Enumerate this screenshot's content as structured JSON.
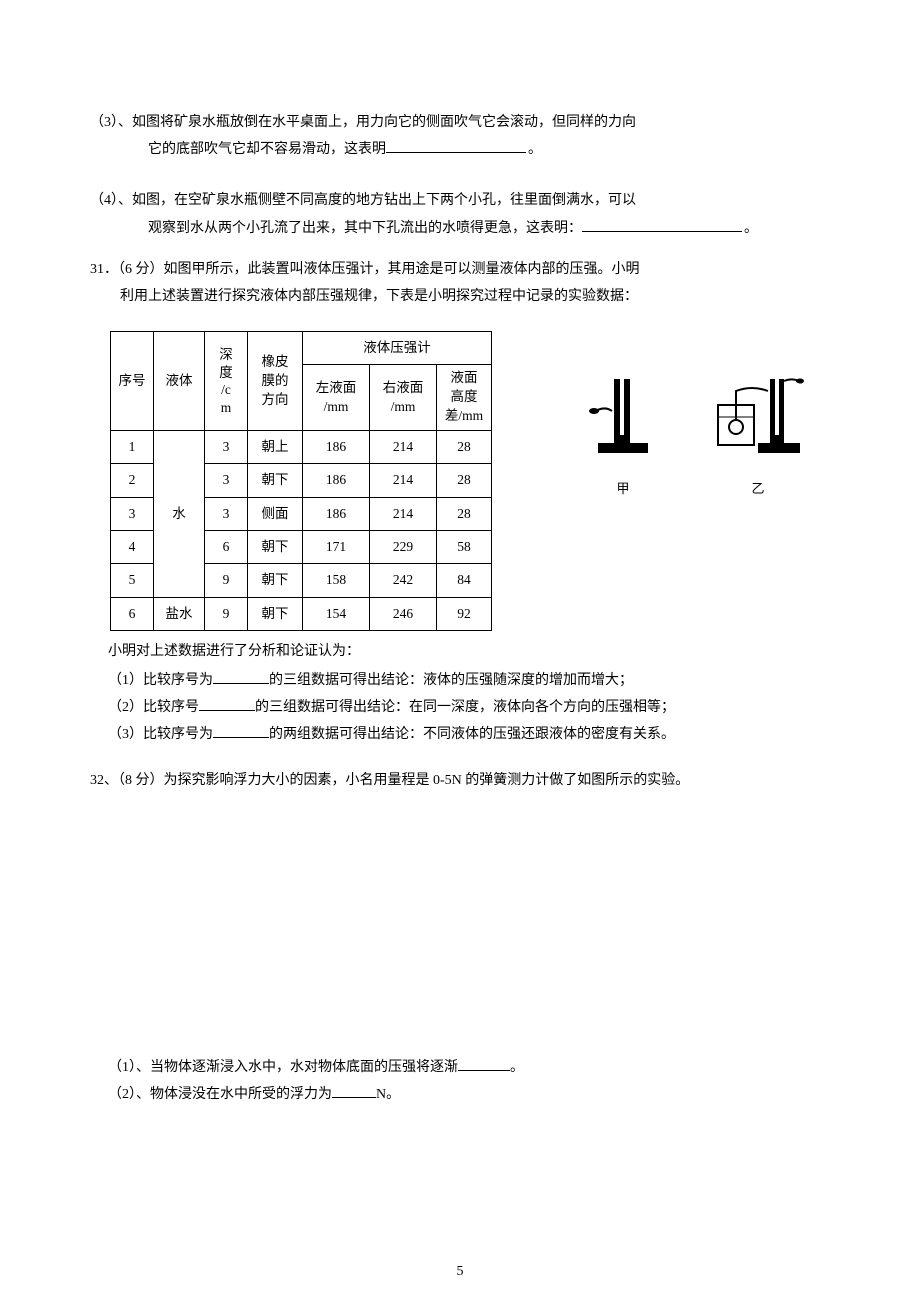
{
  "q3": {
    "label": "（3）、",
    "line1": "如图将矿泉水瓶放倒在水平桌面上，用力向它的侧面吹气它会滚动，但同样的力向",
    "line2": "它的底部吹气它却不容易滑动，这表明",
    "blank_w": 140,
    "tail": "。"
  },
  "q4": {
    "label": "（4）、",
    "line1": "如图，在空矿泉水瓶侧壁不同高度的地方钻出上下两个小孔，往里面倒满水，可以",
    "line2": "观察到水从两个小孔流了出来，其中下孔流出的水喷得更急，这表明：",
    "blank_w": 160,
    "tail": "。"
  },
  "q31": {
    "label": "31．",
    "points": "（6 分）",
    "line1": "如图甲所示，此装置叫液体压强计，其用途是可以测量液体内部的压强。小明",
    "line2": "利用上述装置进行探究液体内部压强规律，下表是小明探究过程中记录的实验数据："
  },
  "table": {
    "head": {
      "seq": "序号",
      "liquid": "液体",
      "depth_l1": "深",
      "depth_l2": "度",
      "depth_l3": "/c",
      "depth_l4": "m",
      "dir_l1": "橡皮",
      "dir_l2": "膜的",
      "dir_l3": "方向",
      "group": "液体压强计",
      "left": "左液面",
      "left_u": "/mm",
      "right": "右液面",
      "right_u": "/mm",
      "diff_l1": "液面",
      "diff_l2": "高度",
      "diff_l3": "差/mm"
    },
    "water_label": "水",
    "salt_label": "盐水",
    "rows": [
      {
        "n": "1",
        "d": "3",
        "dir": "朝上",
        "l": "186",
        "r": "214",
        "h": "28"
      },
      {
        "n": "2",
        "d": "3",
        "dir": "朝下",
        "l": "186",
        "r": "214",
        "h": "28"
      },
      {
        "n": "3",
        "d": "3",
        "dir": "侧面",
        "l": "186",
        "r": "214",
        "h": "28"
      },
      {
        "n": "4",
        "d": "6",
        "dir": "朝下",
        "l": "171",
        "r": "229",
        "h": "58"
      },
      {
        "n": "5",
        "d": "9",
        "dir": "朝下",
        "l": "158",
        "r": "242",
        "h": "84"
      },
      {
        "n": "6",
        "d": "9",
        "dir": "朝下",
        "l": "154",
        "r": "246",
        "h": "92"
      }
    ]
  },
  "figs": {
    "cap1": "甲",
    "cap2": "乙"
  },
  "q31_below": {
    "intro": "小明对上述数据进行了分析和论证认为：",
    "s1a": "（1）比较序号为",
    "s1b": "的三组数据可得出结论：液体的压强随深度的增加而增大；",
    "s2a": "（2）比较序号",
    "s2b": "的三组数据可得出结论：在同一深度，液体向各个方向的压强相等；",
    "s3a": "（3）比较序号为",
    "s3b": "的两组数据可得出结论：不同液体的压强还跟液体的密度有关系。",
    "bw": 56
  },
  "q32": {
    "label": "32、",
    "points": "（8 分）",
    "body": "为探究影响浮力大小的因素，小名用量程是 0-5N 的弹簧测力计做了如图所示的实验。",
    "s1a": "（1）、当物体逐渐浸入水中，水对物体底面的压强将逐渐",
    "s1b": "。",
    "s2a": "（2）、物体浸没在水中所受的浮力为",
    "s2b": "N。",
    "bw1": 52,
    "bw2": 44
  },
  "pagenum": "5",
  "colors": {
    "text": "#000000",
    "bg": "#ffffff"
  }
}
